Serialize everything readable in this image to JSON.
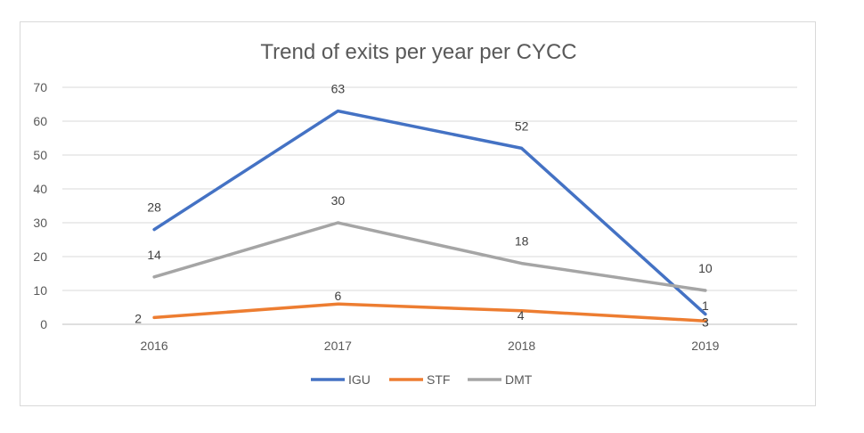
{
  "chart_data": {
    "type": "line",
    "title": "Trend of exits per year per CYCC",
    "xlabel": "",
    "ylabel": "",
    "categories": [
      "2016",
      "2017",
      "2018",
      "2019"
    ],
    "ylim": [
      0,
      70
    ],
    "yticks": [
      0,
      10,
      20,
      30,
      40,
      50,
      60,
      70
    ],
    "grid": true,
    "legend": "bottom",
    "series": [
      {
        "name": "IGU",
        "color": "#4472C4",
        "values": [
          28,
          63,
          52,
          3
        ]
      },
      {
        "name": "STF",
        "color": "#ED7D31",
        "values": [
          2,
          6,
          4,
          1
        ]
      },
      {
        "name": "DMT",
        "color": "#A5A5A5",
        "values": [
          14,
          30,
          18,
          10
        ]
      }
    ]
  }
}
